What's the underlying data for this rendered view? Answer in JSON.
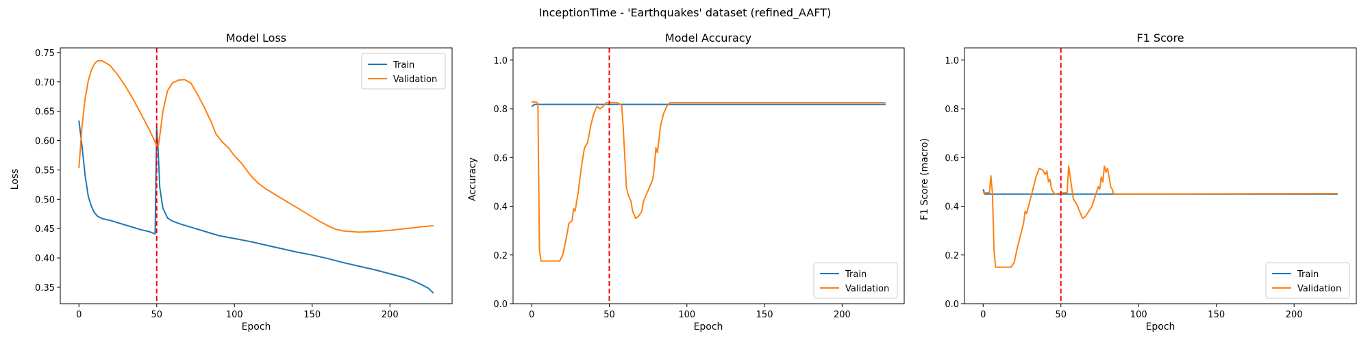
{
  "suptitle": "InceptionTime - 'Earthquakes' dataset (refined_AAFT)",
  "colors": {
    "train": "#1f77b4",
    "validation": "#ff7f0e",
    "marker": "#ff0000",
    "axes": "#000000"
  },
  "chart_data": [
    {
      "type": "line",
      "title": "Model Loss",
      "xlabel": "Epoch",
      "ylabel": "Loss",
      "xlim": [
        -12,
        240
      ],
      "ylim": [
        0.322,
        0.758
      ],
      "xticks": [
        0,
        50,
        100,
        150,
        200
      ],
      "yticks": [
        0.35,
        0.4,
        0.45,
        0.5,
        0.55,
        0.6,
        0.65,
        0.7,
        0.75
      ],
      "ytick_labels": [
        "0.35",
        "0.40",
        "0.45",
        "0.50",
        "0.55",
        "0.60",
        "0.65",
        "0.70",
        "0.75"
      ],
      "grid": false,
      "legend": "upper right",
      "vline": 50,
      "series": [
        {
          "name": "Train",
          "points": [
            [
              0,
              0.634
            ],
            [
              2,
              0.59
            ],
            [
              4,
              0.54
            ],
            [
              6,
              0.505
            ],
            [
              8,
              0.488
            ],
            [
              10,
              0.477
            ],
            [
              12,
              0.471
            ],
            [
              15,
              0.467
            ],
            [
              20,
              0.464
            ],
            [
              25,
              0.46
            ],
            [
              30,
              0.456
            ],
            [
              35,
              0.452
            ],
            [
              40,
              0.448
            ],
            [
              45,
              0.445
            ],
            [
              49,
              0.441
            ],
            [
              50,
              0.622
            ],
            [
              51,
              0.58
            ],
            [
              52,
              0.52
            ],
            [
              54,
              0.485
            ],
            [
              57,
              0.468
            ],
            [
              60,
              0.463
            ],
            [
              65,
              0.458
            ],
            [
              70,
              0.454
            ],
            [
              80,
              0.446
            ],
            [
              90,
              0.438
            ],
            [
              100,
              0.433
            ],
            [
              110,
              0.428
            ],
            [
              120,
              0.422
            ],
            [
              130,
              0.416
            ],
            [
              140,
              0.41
            ],
            [
              150,
              0.405
            ],
            [
              160,
              0.399
            ],
            [
              170,
              0.392
            ],
            [
              180,
              0.386
            ],
            [
              190,
              0.38
            ],
            [
              200,
              0.373
            ],
            [
              210,
              0.366
            ],
            [
              215,
              0.361
            ],
            [
              220,
              0.355
            ],
            [
              225,
              0.348
            ],
            [
              228,
              0.34
            ]
          ]
        },
        {
          "name": "Validation",
          "points": [
            [
              0,
              0.553
            ],
            [
              2,
              0.625
            ],
            [
              4,
              0.672
            ],
            [
              6,
              0.702
            ],
            [
              8,
              0.72
            ],
            [
              10,
              0.731
            ],
            [
              12,
              0.736
            ],
            [
              15,
              0.736
            ],
            [
              20,
              0.728
            ],
            [
              25,
              0.712
            ],
            [
              30,
              0.692
            ],
            [
              35,
              0.67
            ],
            [
              40,
              0.645
            ],
            [
              45,
              0.62
            ],
            [
              50,
              0.592
            ],
            [
              51,
              0.59
            ],
            [
              52,
              0.608
            ],
            [
              54,
              0.65
            ],
            [
              57,
              0.685
            ],
            [
              60,
              0.698
            ],
            [
              64,
              0.703
            ],
            [
              68,
              0.704
            ],
            [
              72,
              0.698
            ],
            [
              76,
              0.68
            ],
            [
              80,
              0.66
            ],
            [
              85,
              0.632
            ],
            [
              88,
              0.612
            ],
            [
              92,
              0.598
            ],
            [
              96,
              0.588
            ],
            [
              100,
              0.574
            ],
            [
              105,
              0.56
            ],
            [
              110,
              0.542
            ],
            [
              115,
              0.528
            ],
            [
              120,
              0.518
            ],
            [
              125,
              0.51
            ],
            [
              130,
              0.502
            ],
            [
              135,
              0.494
            ],
            [
              140,
              0.486
            ],
            [
              145,
              0.478
            ],
            [
              150,
              0.47
            ],
            [
              155,
              0.462
            ],
            [
              160,
              0.455
            ],
            [
              165,
              0.449
            ],
            [
              170,
              0.446
            ],
            [
              180,
              0.444
            ],
            [
              190,
              0.445
            ],
            [
              200,
              0.447
            ],
            [
              210,
              0.45
            ],
            [
              220,
              0.453
            ],
            [
              228,
              0.455
            ]
          ]
        }
      ]
    },
    {
      "type": "line",
      "title": "Model Accuracy",
      "xlabel": "Epoch",
      "ylabel": "Accuracy",
      "xlim": [
        -12,
        240
      ],
      "ylim": [
        0,
        1.05
      ],
      "xticks": [
        0,
        50,
        100,
        150,
        200
      ],
      "yticks": [
        0,
        0.2,
        0.4,
        0.6,
        0.8,
        1.0
      ],
      "ytick_labels": [
        "0.0",
        "0.2",
        "0.4",
        "0.6",
        "0.8",
        "1.0"
      ],
      "grid": false,
      "legend": "lower right",
      "vline": 50,
      "series": [
        {
          "name": "Train",
          "points": [
            [
              0,
              0.81
            ],
            [
              2,
              0.818
            ],
            [
              228,
              0.818
            ]
          ]
        },
        {
          "name": "Validation",
          "points": [
            [
              0,
              0.828
            ],
            [
              3,
              0.828
            ],
            [
              4,
              0.82
            ],
            [
              5,
              0.22
            ],
            [
              6,
              0.175
            ],
            [
              10,
              0.175
            ],
            [
              15,
              0.175
            ],
            [
              18,
              0.175
            ],
            [
              20,
              0.2
            ],
            [
              22,
              0.26
            ],
            [
              24,
              0.33
            ],
            [
              26,
              0.34
            ],
            [
              27,
              0.39
            ],
            [
              28,
              0.38
            ],
            [
              30,
              0.46
            ],
            [
              32,
              0.56
            ],
            [
              34,
              0.64
            ],
            [
              36,
              0.66
            ],
            [
              38,
              0.73
            ],
            [
              40,
              0.78
            ],
            [
              42,
              0.81
            ],
            [
              44,
              0.8
            ],
            [
              46,
              0.81
            ],
            [
              48,
              0.825
            ],
            [
              50,
              0.825
            ],
            [
              55,
              0.825
            ],
            [
              58,
              0.815
            ],
            [
              59,
              0.72
            ],
            [
              60,
              0.6
            ],
            [
              61,
              0.48
            ],
            [
              62,
              0.45
            ],
            [
              64,
              0.42
            ],
            [
              65,
              0.38
            ],
            [
              67,
              0.35
            ],
            [
              69,
              0.36
            ],
            [
              71,
              0.38
            ],
            [
              72,
              0.42
            ],
            [
              74,
              0.45
            ],
            [
              76,
              0.48
            ],
            [
              78,
              0.51
            ],
            [
              79,
              0.56
            ],
            [
              80,
              0.64
            ],
            [
              81,
              0.62
            ],
            [
              83,
              0.73
            ],
            [
              85,
              0.78
            ],
            [
              87,
              0.81
            ],
            [
              89,
              0.825
            ],
            [
              228,
              0.825
            ]
          ]
        }
      ]
    },
    {
      "type": "line",
      "title": "F1 Score",
      "xlabel": "Epoch",
      "ylabel": "F1 Score (macro)",
      "xlim": [
        -12,
        240
      ],
      "ylim": [
        0,
        1.05
      ],
      "xticks": [
        0,
        50,
        100,
        150,
        200
      ],
      "yticks": [
        0,
        0.2,
        0.4,
        0.6,
        0.8,
        1.0
      ],
      "ytick_labels": [
        "0.0",
        "0.2",
        "0.4",
        "0.6",
        "0.8",
        "1.0"
      ],
      "grid": false,
      "legend": "lower right",
      "vline": 50,
      "series": [
        {
          "name": "Train",
          "points": [
            [
              0,
              0.47
            ],
            [
              1,
              0.45
            ],
            [
              228,
              0.45
            ]
          ]
        },
        {
          "name": "Validation",
          "points": [
            [
              0,
              0.455
            ],
            [
              3,
              0.455
            ],
            [
              4,
              0.455
            ],
            [
              5,
              0.525
            ],
            [
              6,
              0.45
            ],
            [
              7,
              0.22
            ],
            [
              8,
              0.15
            ],
            [
              12,
              0.15
            ],
            [
              18,
              0.15
            ],
            [
              20,
              0.17
            ],
            [
              22,
              0.23
            ],
            [
              24,
              0.28
            ],
            [
              26,
              0.33
            ],
            [
              27,
              0.38
            ],
            [
              28,
              0.37
            ],
            [
              30,
              0.42
            ],
            [
              32,
              0.47
            ],
            [
              34,
              0.52
            ],
            [
              36,
              0.555
            ],
            [
              38,
              0.55
            ],
            [
              40,
              0.53
            ],
            [
              41,
              0.545
            ],
            [
              42,
              0.5
            ],
            [
              43,
              0.51
            ],
            [
              44,
              0.47
            ],
            [
              46,
              0.45
            ],
            [
              48,
              0.452
            ],
            [
              52,
              0.455
            ],
            [
              54,
              0.455
            ],
            [
              55,
              0.565
            ],
            [
              56,
              0.52
            ],
            [
              58,
              0.43
            ],
            [
              60,
              0.41
            ],
            [
              62,
              0.38
            ],
            [
              64,
              0.35
            ],
            [
              66,
              0.36
            ],
            [
              68,
              0.38
            ],
            [
              70,
              0.4
            ],
            [
              72,
              0.44
            ],
            [
              74,
              0.48
            ],
            [
              75,
              0.47
            ],
            [
              76,
              0.52
            ],
            [
              77,
              0.5
            ],
            [
              78,
              0.565
            ],
            [
              79,
              0.54
            ],
            [
              80,
              0.555
            ],
            [
              81,
              0.52
            ],
            [
              82,
              0.48
            ],
            [
              83,
              0.47
            ],
            [
              84,
              0.45
            ],
            [
              228,
              0.452
            ]
          ]
        }
      ]
    }
  ]
}
